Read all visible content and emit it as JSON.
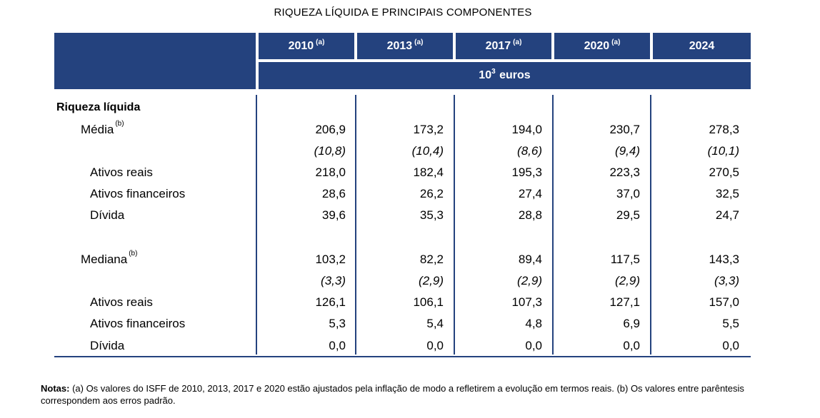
{
  "title": "RIQUEZA LÍQUIDA E PRINCIPAIS COMPONENTES",
  "columns": [
    {
      "year": "2010",
      "note": "(a)"
    },
    {
      "year": "2013",
      "note": "(a)"
    },
    {
      "year": "2017",
      "note": "(a)"
    },
    {
      "year": "2020",
      "note": "(a)"
    },
    {
      "year": "2024",
      "note": ""
    }
  ],
  "unit": {
    "base": "10",
    "exp": "3",
    "label": "euros"
  },
  "section_title": "Riqueza líquida",
  "rows": {
    "media": {
      "label": "Média",
      "note": "(b)",
      "values": [
        "206,9",
        "173,2",
        "194,0",
        "230,7",
        "278,3"
      ]
    },
    "media_se": {
      "values": [
        "(10,8)",
        "(10,4)",
        "(8,6)",
        "(9,4)",
        "(10,1)"
      ]
    },
    "media_ativos_reais": {
      "label": "Ativos reais",
      "values": [
        "218,0",
        "182,4",
        "195,3",
        "223,3",
        "270,5"
      ]
    },
    "media_ativos_fin": {
      "label": "Ativos financeiros",
      "values": [
        "28,6",
        "26,2",
        "27,4",
        "37,0",
        "32,5"
      ]
    },
    "media_divida": {
      "label": "Dívida",
      "values": [
        "39,6",
        "35,3",
        "28,8",
        "29,5",
        "24,7"
      ]
    },
    "mediana": {
      "label": "Mediana",
      "note": "(b)",
      "values": [
        "103,2",
        "82,2",
        "89,4",
        "117,5",
        "143,3"
      ]
    },
    "mediana_se": {
      "values": [
        "(3,3)",
        "(2,9)",
        "(2,9)",
        "(2,9)",
        "(3,3)"
      ]
    },
    "mediana_ativos_reais": {
      "label": "Ativos reais",
      "values": [
        "126,1",
        "106,1",
        "107,3",
        "127,1",
        "157,0"
      ]
    },
    "mediana_ativos_fin": {
      "label": "Ativos financeiros",
      "values": [
        "5,3",
        "5,4",
        "4,8",
        "6,9",
        "5,5"
      ]
    },
    "mediana_divida": {
      "label": "Dívida",
      "values": [
        "0,0",
        "0,0",
        "0,0",
        "0,0",
        "0,0"
      ]
    }
  },
  "notes": {
    "prefix": "Notas:",
    "text": " (a) Os valores do ISFF de 2010, 2013, 2017 e 2020 estão ajustados pela inflação de modo a refletirem a evolução em termos reais. (b) Os valores entre parêntesis correspondem aos erros padrão."
  }
}
